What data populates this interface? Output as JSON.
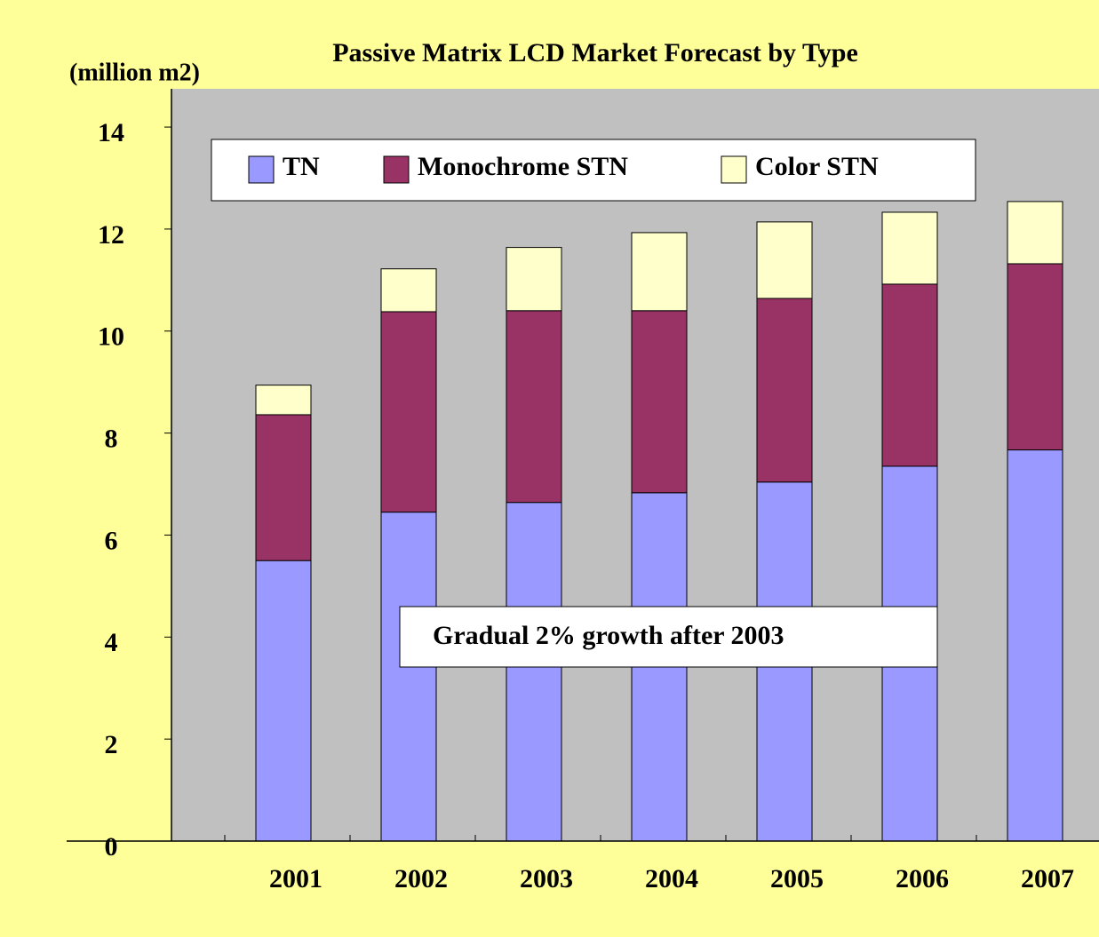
{
  "chart_data": {
    "type": "stacked-bar",
    "title": "Passive Matrix LCD Market Forecast by Type",
    "y_axis_label": "(million m2)",
    "categories": [
      "2001",
      "2002",
      "2003",
      "2004",
      "2005",
      "2006",
      "2007"
    ],
    "series": [
      {
        "name": "TN",
        "color": "#9999ff",
        "values": [
          5.5,
          6.45,
          6.64,
          6.83,
          7.04,
          7.35,
          7.67
        ]
      },
      {
        "name": "Monochrome STN",
        "color": "#993366",
        "values": [
          2.86,
          3.93,
          3.76,
          3.57,
          3.6,
          3.57,
          3.65
        ]
      },
      {
        "name": "Color STN",
        "color": "#ffffcc",
        "values": [
          0.58,
          0.84,
          1.24,
          1.53,
          1.5,
          1.41,
          1.22
        ]
      }
    ],
    "ylim": [
      0,
      14.75
    ],
    "yticks": [
      0,
      2,
      4,
      6,
      8,
      10,
      12,
      14
    ],
    "annotation": "Gradual 2% growth after 2003"
  }
}
